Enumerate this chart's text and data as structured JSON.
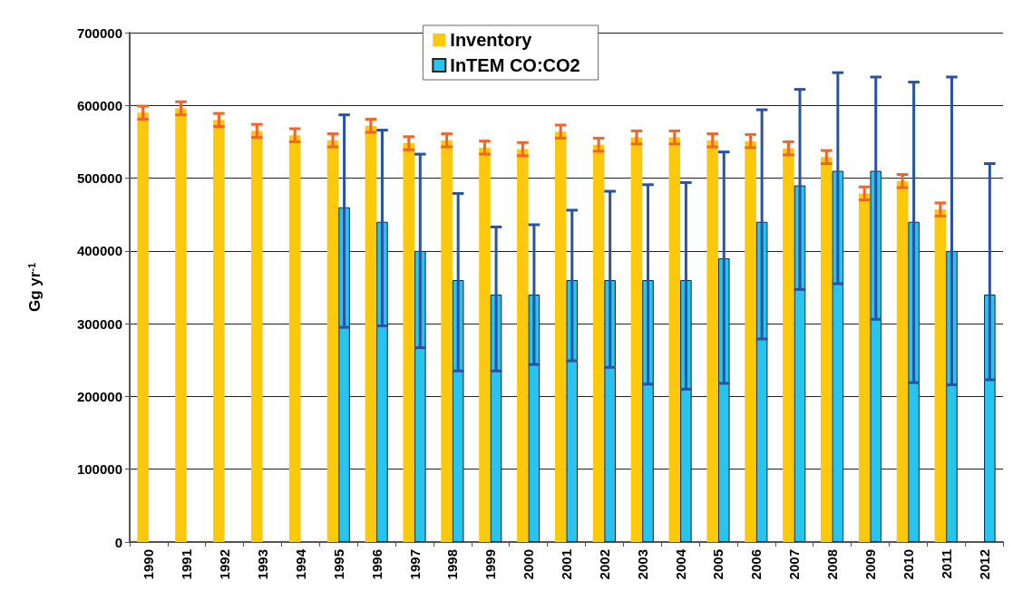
{
  "chart_data": {
    "type": "bar",
    "ylabel": "Gg yr$^{-1}$",
    "categories": [
      "1990",
      "1991",
      "1992",
      "1993",
      "1994",
      "1995",
      "1996",
      "1997",
      "1998",
      "1999",
      "2000",
      "2001",
      "2002",
      "2003",
      "2004",
      "2005",
      "2006",
      "2007",
      "2008",
      "2009",
      "2010",
      "2011",
      "2012"
    ],
    "series": [
      {
        "name": "Inventory",
        "color": "#fcc80c",
        "values": [
          590000,
          596000,
          580000,
          565000,
          559000,
          552000,
          572000,
          548000,
          552000,
          542000,
          540000,
          564000,
          546000,
          556000,
          556000,
          552000,
          551000,
          541000,
          529000,
          479000,
          496000,
          457000,
          null
        ],
        "errors": [
          9000,
          9000,
          9000,
          9000,
          9000,
          9000,
          9000,
          9000,
          9000,
          9000,
          9000,
          9000,
          9000,
          9000,
          9000,
          9000,
          9000,
          9000,
          9000,
          9000,
          9000,
          9000,
          null
        ]
      },
      {
        "name": "InTEM CO:CO2",
        "color": "#29c3f0",
        "values": [
          null,
          null,
          null,
          null,
          null,
          460000,
          440000,
          400000,
          360000,
          340000,
          340000,
          360000,
          360000,
          360000,
          360000,
          390000,
          440000,
          490000,
          510000,
          510000,
          440000,
          400000,
          340000
        ],
        "errors": [
          null,
          null,
          null,
          null,
          null,
          [
            295000,
            587000
          ],
          [
            297000,
            566000
          ],
          [
            267000,
            533000
          ],
          [
            235000,
            479000
          ],
          [
            235000,
            433000
          ],
          [
            244000,
            436000
          ],
          [
            249000,
            456000
          ],
          [
            240000,
            482000
          ],
          [
            217000,
            491000
          ],
          [
            210000,
            494000
          ],
          [
            218000,
            536000
          ],
          [
            279000,
            594000
          ],
          [
            347000,
            622000
          ],
          [
            355000,
            645000
          ],
          [
            306000,
            639000
          ],
          [
            219000,
            632000
          ],
          [
            216000,
            639000
          ],
          [
            223000,
            520000
          ]
        ]
      }
    ],
    "ylim": [
      0,
      700000
    ],
    "yticks": [
      0,
      100000,
      200000,
      300000,
      400000,
      500000,
      600000,
      700000
    ],
    "grid": "y",
    "legend": "top"
  }
}
